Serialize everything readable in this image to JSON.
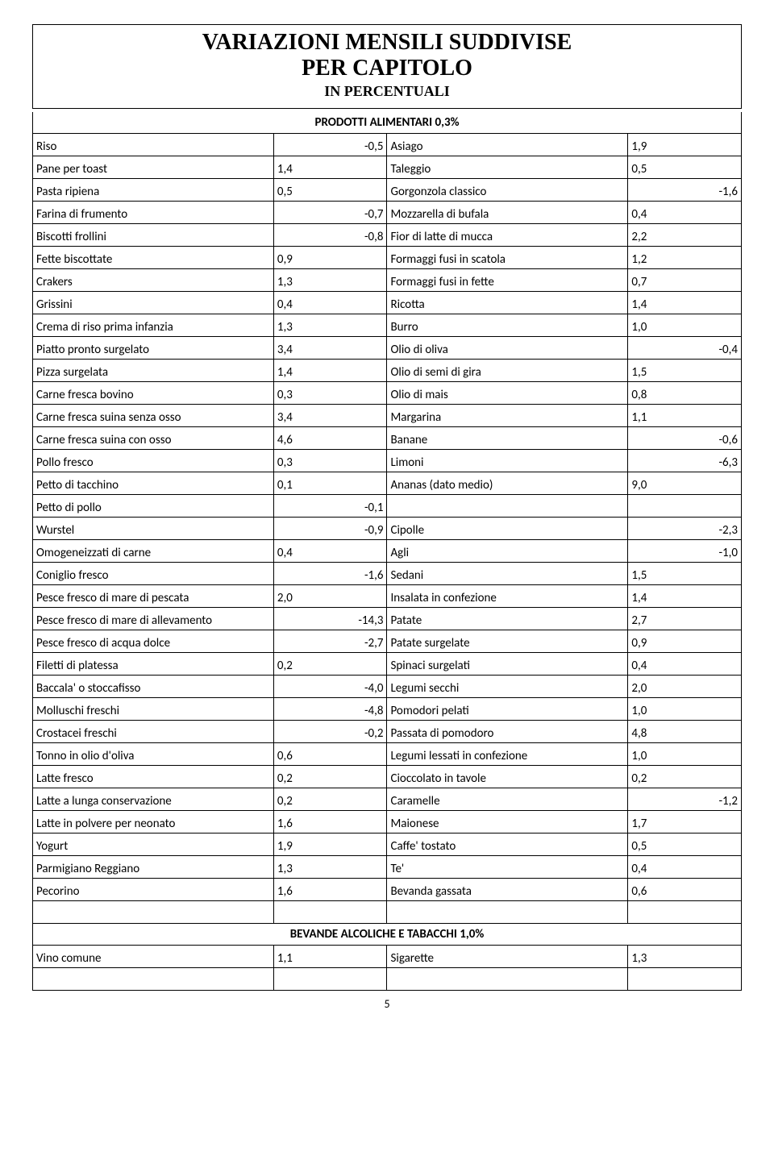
{
  "title": {
    "line1": "VARIAZIONI MENSILI SUDDIVISE",
    "line2": "PER CAPITOLO",
    "line3": "IN PERCENTUALI"
  },
  "section1": {
    "header": "PRODOTTI ALIMENTARI 0,3%",
    "rows": [
      {
        "l": "Riso",
        "lp": "",
        "ln": "-0,5",
        "r": "Asiago",
        "rp": "1,9",
        "rn": ""
      },
      {
        "l": "Pane per toast",
        "lp": "1,4",
        "ln": "",
        "r": "Taleggio",
        "rp": "0,5",
        "rn": ""
      },
      {
        "l": "Pasta ripiena",
        "lp": "0,5",
        "ln": "",
        "r": "Gorgonzola classico",
        "rp": "",
        "rn": "-1,6"
      },
      {
        "l": "Farina di frumento",
        "lp": "",
        "ln": "-0,7",
        "r": "Mozzarella di bufala",
        "rp": "0,4",
        "rn": ""
      },
      {
        "l": "Biscotti frollini",
        "lp": "",
        "ln": "-0,8",
        "r": "Fior di latte di mucca",
        "rp": "2,2",
        "rn": ""
      },
      {
        "l": "Fette biscottate",
        "lp": "0,9",
        "ln": "",
        "r": "Formaggi fusi in scatola",
        "rp": "1,2",
        "rn": ""
      },
      {
        "l": "Crakers",
        "lp": "1,3",
        "ln": "",
        "r": "Formaggi fusi in fette",
        "rp": "0,7",
        "rn": ""
      },
      {
        "l": "Grissini",
        "lp": "0,4",
        "ln": "",
        "r": "Ricotta",
        "rp": "1,4",
        "rn": ""
      },
      {
        "l": "Crema di riso prima infanzia",
        "lp": "1,3",
        "ln": "",
        "r": "Burro",
        "rp": "1,0",
        "rn": ""
      },
      {
        "l": "Piatto pronto surgelato",
        "lp": "3,4",
        "ln": "",
        "r": "Olio di oliva",
        "rp": "",
        "rn": "-0,4"
      },
      {
        "l": "Pizza surgelata",
        "lp": "1,4",
        "ln": "",
        "r": "Olio di semi di gira",
        "rp": "1,5",
        "rn": ""
      },
      {
        "l": "Carne fresca bovino",
        "lp": "0,3",
        "ln": "",
        "r": "Olio di mais",
        "rp": "0,8",
        "rn": ""
      },
      {
        "l": "Carne fresca suina senza osso",
        "lp": "3,4",
        "ln": "",
        "r": "Margarina",
        "rp": "1,1",
        "rn": ""
      },
      {
        "l": "Carne fresca suina con osso",
        "lp": "4,6",
        "ln": "",
        "r": "Banane",
        "rp": "",
        "rn": "-0,6"
      },
      {
        "l": "Pollo fresco",
        "lp": "0,3",
        "ln": "",
        "r": "Limoni",
        "rp": "",
        "rn": "-6,3"
      },
      {
        "l": "Petto di tacchino",
        "lp": "0,1",
        "ln": "",
        "r": "Ananas (dato medio)",
        "rp": "9,0",
        "rn": ""
      },
      {
        "l": "Petto di pollo",
        "lp": "",
        "ln": "-0,1",
        "r": "",
        "rp": "",
        "rn": ""
      },
      {
        "l": "Wurstel",
        "lp": "",
        "ln": "-0,9",
        "r": "Cipolle",
        "rp": "",
        "rn": "-2,3"
      },
      {
        "l": "Omogeneizzati di carne",
        "lp": "0,4",
        "ln": "",
        "r": "Agli",
        "rp": "",
        "rn": "-1,0"
      },
      {
        "l": "Coniglio fresco",
        "lp": "",
        "ln": "-1,6",
        "r": "Sedani",
        "rp": "1,5",
        "rn": ""
      },
      {
        "l": "Pesce fresco di mare di pescata",
        "lp": "2,0",
        "ln": "",
        "r": "Insalata in confezione",
        "rp": "1,4",
        "rn": ""
      },
      {
        "l": "Pesce fresco di mare di allevamento",
        "lp": "",
        "ln": "-14,3",
        "r": "Patate",
        "rp": "2,7",
        "rn": ""
      },
      {
        "l": "Pesce fresco di acqua dolce",
        "lp": "",
        "ln": "-2,7",
        "r": "Patate surgelate",
        "rp": "0,9",
        "rn": ""
      },
      {
        "l": "Filetti di platessa",
        "lp": "0,2",
        "ln": "",
        "r": "Spinaci surgelati",
        "rp": "0,4",
        "rn": ""
      },
      {
        "l": "Baccala' o stoccafisso",
        "lp": "",
        "ln": "-4,0",
        "r": "Legumi secchi",
        "rp": "2,0",
        "rn": ""
      },
      {
        "l": "Molluschi freschi",
        "lp": "",
        "ln": "-4,8",
        "r": "Pomodori pelati",
        "rp": "1,0",
        "rn": ""
      },
      {
        "l": "Crostacei freschi",
        "lp": "",
        "ln": "-0,2",
        "r": "Passata di pomodoro",
        "rp": "4,8",
        "rn": ""
      },
      {
        "l": "Tonno in olio d'oliva",
        "lp": "0,6",
        "ln": "",
        "r": "Legumi lessati in confezione",
        "rp": "1,0",
        "rn": ""
      },
      {
        "l": "Latte fresco",
        "lp": "0,2",
        "ln": "",
        "r": "Cioccolato in tavole",
        "rp": "0,2",
        "rn": ""
      },
      {
        "l": "Latte a lunga conservazione",
        "lp": "0,2",
        "ln": "",
        "r": "Caramelle",
        "rp": "",
        "rn": "-1,2"
      },
      {
        "l": "Latte in polvere per neonato",
        "lp": "1,6",
        "ln": "",
        "r": "Maionese",
        "rp": "1,7",
        "rn": ""
      },
      {
        "l": "Yogurt",
        "lp": "1,9",
        "ln": "",
        "r": "Caffe' tostato",
        "rp": "0,5",
        "rn": ""
      },
      {
        "l": "Parmigiano Reggiano",
        "lp": "1,3",
        "ln": "",
        "r": "Te'",
        "rp": "0,4",
        "rn": ""
      },
      {
        "l": "Pecorino",
        "lp": "1,6",
        "ln": "",
        "r": "Bevanda gassata",
        "rp": "0,6",
        "rn": ""
      }
    ]
  },
  "section2": {
    "header": "BEVANDE ALCOLICHE E TABACCHI 1,0%",
    "rows": [
      {
        "l": "Vino comune",
        "lp": "1,1",
        "ln": "",
        "r": "Sigarette",
        "rp": "1,3",
        "rn": ""
      }
    ]
  },
  "pagenum": "5"
}
